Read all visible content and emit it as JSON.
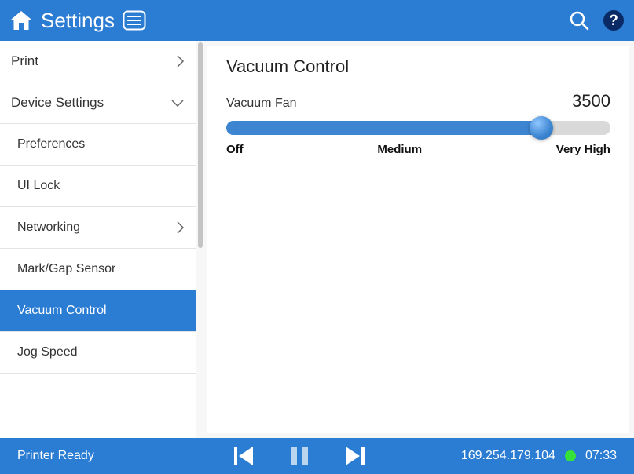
{
  "colors": {
    "brand": "#2b7cd3",
    "slider_fill": "#3d85d1",
    "slider_track": "#d9d9d9",
    "status_ok": "#36e23a"
  },
  "header": {
    "title": "Settings"
  },
  "sidebar": {
    "items": [
      {
        "label": "Print",
        "kind": "top",
        "chevron": "right",
        "active": false
      },
      {
        "label": "Device Settings",
        "kind": "top",
        "chevron": "down",
        "active": false
      },
      {
        "label": "Preferences",
        "kind": "child",
        "chevron": "",
        "active": false
      },
      {
        "label": "UI Lock",
        "kind": "child",
        "chevron": "",
        "active": false
      },
      {
        "label": "Networking",
        "kind": "child",
        "chevron": "right",
        "active": false
      },
      {
        "label": "Mark/Gap Sensor",
        "kind": "child",
        "chevron": "",
        "active": false
      },
      {
        "label": "Vacuum Control",
        "kind": "child",
        "chevron": "",
        "active": true
      },
      {
        "label": "Jog Speed",
        "kind": "child",
        "chevron": "",
        "active": false
      }
    ]
  },
  "main": {
    "title": "Vacuum Control",
    "slider": {
      "name": "Vacuum Fan",
      "value_text": "3500",
      "fill_percent": 82,
      "scale_left": "Off",
      "scale_mid": "Medium",
      "scale_right": "Very High"
    }
  },
  "footer": {
    "status": "Printer Ready",
    "ip": "169.254.179.104",
    "time": "07:33"
  }
}
